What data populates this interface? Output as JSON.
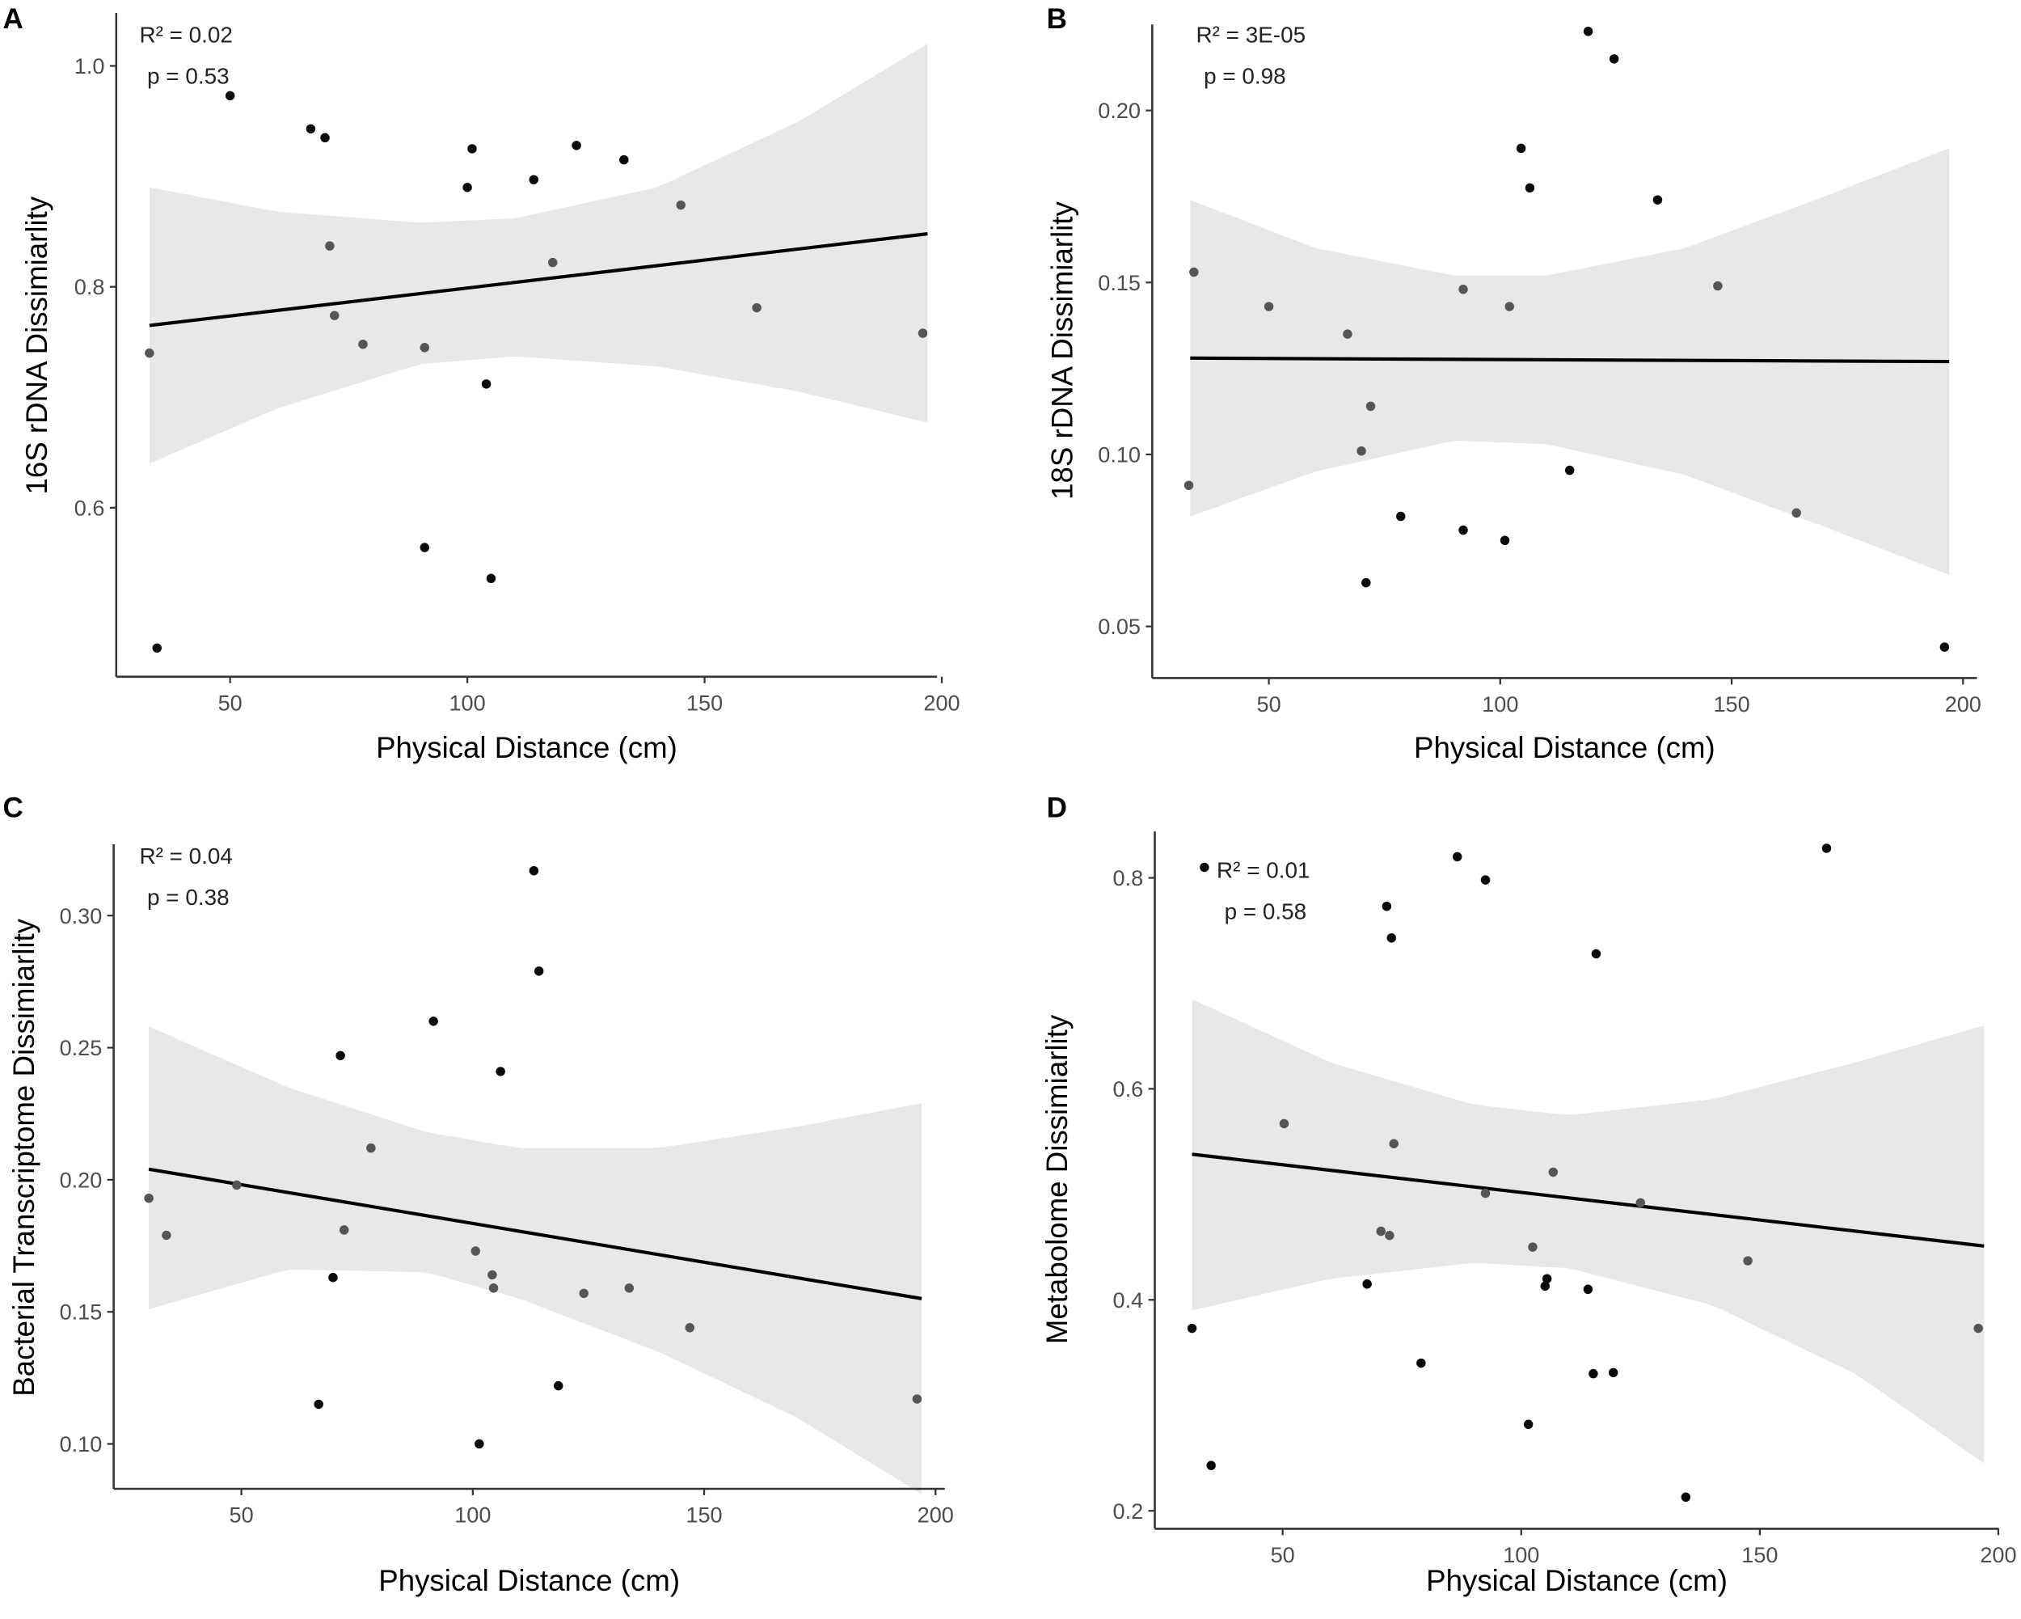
{
  "chart_data": [
    {
      "panel": "A",
      "type": "scatter",
      "xlabel": "Physical Distance (cm)",
      "ylabel": "16S rDNA Dissimiarlity",
      "r2_label": "R² = 0.02",
      "p_label": "p = 0.53",
      "xlim": [
        26,
        199
      ],
      "ylim": [
        0.447,
        1.048
      ],
      "xticks": [
        50,
        100,
        150,
        200
      ],
      "xtick_labels": [
        "50",
        "100",
        "150",
        "200"
      ],
      "yticks": [
        0.6,
        0.8,
        1.0
      ],
      "ytick_labels": [
        "0.6",
        "0.8",
        "1.0"
      ],
      "points": [
        [
          33,
          0.74
        ],
        [
          34.6,
          0.473
        ],
        [
          50,
          0.973
        ],
        [
          67,
          0.943
        ],
        [
          70,
          0.935
        ],
        [
          71,
          0.837
        ],
        [
          72,
          0.774
        ],
        [
          78,
          0.748
        ],
        [
          91,
          0.745
        ],
        [
          91,
          0.564
        ],
        [
          100,
          0.89
        ],
        [
          101,
          0.925
        ],
        [
          104,
          0.712
        ],
        [
          105,
          0.536
        ],
        [
          114,
          0.897
        ],
        [
          118,
          0.822
        ],
        [
          123,
          0.928
        ],
        [
          133,
          0.915
        ],
        [
          145,
          0.874
        ],
        [
          161,
          0.781
        ],
        [
          196,
          0.758
        ]
      ],
      "fit": [
        [
          33,
          0.765
        ],
        [
          197,
          0.848
        ]
      ],
      "ci_x": [
        33,
        60,
        90,
        110,
        140,
        170,
        197
      ],
      "ci_upper": [
        0.89,
        0.868,
        0.858,
        0.862,
        0.89,
        0.95,
        1.02
      ],
      "ci_lower": [
        0.64,
        0.69,
        0.73,
        0.737,
        0.728,
        0.705,
        0.677
      ]
    },
    {
      "panel": "B",
      "type": "scatter",
      "xlabel": "Physical Distance (cm)",
      "ylabel": "18S rDNA Dissimiarlity",
      "r2_label": "R² = 3E-05",
      "p_label": "p = 0.98",
      "xlim": [
        24.8,
        203
      ],
      "ylim": [
        0.035,
        0.225
      ],
      "xticks": [
        50,
        100,
        150,
        200
      ],
      "xtick_labels": [
        "50",
        "100",
        "150",
        "200"
      ],
      "yticks": [
        0.05,
        0.1,
        0.15,
        0.2
      ],
      "ytick_labels": [
        "0.05",
        "0.10",
        "0.15",
        "0.20"
      ],
      "points": [
        [
          32.7,
          0.091
        ],
        [
          33.8,
          0.153
        ],
        [
          50,
          0.143
        ],
        [
          67,
          0.135
        ],
        [
          70,
          0.101
        ],
        [
          72,
          0.114
        ],
        [
          71,
          0.0627
        ],
        [
          78.5,
          0.082
        ],
        [
          92,
          0.078
        ],
        [
          92,
          0.148
        ],
        [
          101,
          0.075
        ],
        [
          102,
          0.143
        ],
        [
          104.5,
          0.189
        ],
        [
          106.4,
          0.1775
        ],
        [
          115,
          0.0954
        ],
        [
          119,
          0.223
        ],
        [
          124.6,
          0.215
        ],
        [
          134,
          0.174
        ],
        [
          147,
          0.149
        ],
        [
          164,
          0.083
        ],
        [
          196,
          0.044
        ]
      ],
      "fit": [
        [
          33,
          0.128
        ],
        [
          197,
          0.127
        ]
      ],
      "ci_x": [
        33,
        60,
        90,
        110,
        140,
        170,
        197
      ],
      "ci_upper": [
        0.174,
        0.16,
        0.152,
        0.152,
        0.16,
        0.175,
        0.189
      ],
      "ci_lower": [
        0.082,
        0.095,
        0.104,
        0.103,
        0.094,
        0.079,
        0.065
      ]
    },
    {
      "panel": "C",
      "type": "scatter",
      "xlabel": "Physical Distance (cm)",
      "ylabel": "Bacterial Transcriptome Dissimiarlity",
      "r2_label": "R² = 0.04",
      "p_label": "p = 0.38",
      "xlim": [
        22.4,
        202
      ],
      "ylim": [
        0.083,
        0.327
      ],
      "xticks": [
        50,
        100,
        150,
        200
      ],
      "xtick_labels": [
        "50",
        "100",
        "150",
        "200"
      ],
      "yticks": [
        0.1,
        0.15,
        0.2,
        0.25,
        0.3
      ],
      "ytick_labels": [
        "0.10",
        "0.15",
        "0.20",
        "0.25",
        "0.30"
      ],
      "points": [
        [
          30,
          0.193
        ],
        [
          33.8,
          0.179
        ],
        [
          49,
          0.198
        ],
        [
          66.7,
          0.115
        ],
        [
          69.8,
          0.163
        ],
        [
          71.4,
          0.247
        ],
        [
          72.2,
          0.181
        ],
        [
          78,
          0.212
        ],
        [
          91.5,
          0.26
        ],
        [
          100.6,
          0.173
        ],
        [
          101.4,
          0.1
        ],
        [
          104.2,
          0.164
        ],
        [
          104.5,
          0.159
        ],
        [
          106,
          0.241
        ],
        [
          113.2,
          0.317
        ],
        [
          114.3,
          0.279
        ],
        [
          118.5,
          0.122
        ],
        [
          124,
          0.157
        ],
        [
          133.8,
          0.159
        ],
        [
          146.9,
          0.144
        ],
        [
          196,
          0.117
        ]
      ],
      "fit": [
        [
          30,
          0.204
        ],
        [
          197,
          0.155
        ]
      ],
      "ci_x": [
        30,
        60,
        90,
        110,
        140,
        170,
        197
      ],
      "ci_upper": [
        0.258,
        0.235,
        0.218,
        0.212,
        0.212,
        0.22,
        0.229
      ],
      "ci_lower": [
        0.151,
        0.166,
        0.165,
        0.155,
        0.135,
        0.11,
        0.081
      ]
    },
    {
      "panel": "D",
      "type": "scatter",
      "xlabel": "Physical Distance (cm)",
      "ylabel": "Metabolome Dissimiarlity",
      "r2_label": "R² = 0.01",
      "p_label": "p = 0.58",
      "xlim": [
        23.2,
        200.1
      ],
      "ylim": [
        0.183,
        0.844
      ],
      "xticks": [
        50,
        100,
        150,
        200
      ],
      "xtick_labels": [
        "50",
        "100",
        "150",
        "200"
      ],
      "yticks": [
        0.2,
        0.4,
        0.6,
        0.8
      ],
      "ytick_labels": [
        "0.2",
        "0.4",
        "0.6",
        "0.8"
      ],
      "points": [
        [
          31,
          0.373
        ],
        [
          33.6,
          0.81
        ],
        [
          35,
          0.243
        ],
        [
          50.3,
          0.567
        ],
        [
          67.7,
          0.415
        ],
        [
          70.6,
          0.465
        ],
        [
          71.8,
          0.773
        ],
        [
          72.4,
          0.461
        ],
        [
          72.8,
          0.743
        ],
        [
          73.3,
          0.548
        ],
        [
          79,
          0.34
        ],
        [
          86.6,
          0.82
        ],
        [
          92.5,
          0.501
        ],
        [
          92.5,
          0.798
        ],
        [
          101.5,
          0.282
        ],
        [
          102.4,
          0.45
        ],
        [
          105,
          0.413
        ],
        [
          105.4,
          0.42
        ],
        [
          106.7,
          0.521
        ],
        [
          114,
          0.41
        ],
        [
          115.1,
          0.33
        ],
        [
          115.7,
          0.728
        ],
        [
          119.3,
          0.331
        ],
        [
          125,
          0.492
        ],
        [
          134.5,
          0.213
        ],
        [
          147.5,
          0.437
        ],
        [
          164,
          0.828
        ],
        [
          195.8,
          0.373
        ]
      ],
      "fit": [
        [
          31,
          0.538
        ],
        [
          197,
          0.451
        ]
      ],
      "ci_x": [
        31,
        60,
        90,
        110,
        140,
        170,
        197
      ],
      "ci_upper": [
        0.685,
        0.625,
        0.585,
        0.575,
        0.59,
        0.625,
        0.66
      ],
      "ci_lower": [
        0.39,
        0.42,
        0.435,
        0.43,
        0.395,
        0.33,
        0.245
      ]
    }
  ],
  "colors": {
    "ribbon": "#e8e8e8",
    "point_outside": "#0a0a0a",
    "point_inside": "#555555",
    "fit": "#000000",
    "axis": "#333333"
  }
}
